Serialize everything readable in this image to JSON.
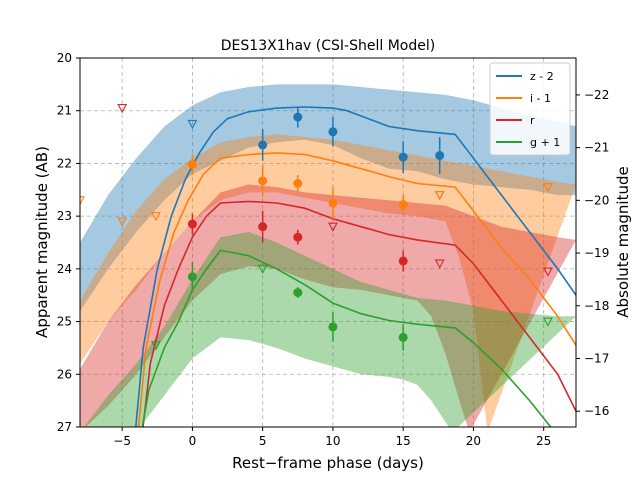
{
  "chart_data": {
    "type": "line",
    "title": "DES13X1hav (CSI-Shell Model)",
    "xlabel": "Rest−frame phase (days)",
    "ylabel": "Apparent magnitude (AB)",
    "ylabel_right": "Absolute magnitude",
    "xlim": [
      -8,
      27.3
    ],
    "ylim": [
      27,
      20
    ],
    "ylim_right": [
      -15.7,
      -22.7
    ],
    "x_ticks": [
      -5,
      0,
      5,
      10,
      15,
      20,
      25
    ],
    "y_ticks": [
      20,
      21,
      22,
      23,
      24,
      25,
      26,
      27
    ],
    "y_right_ticks": [
      -16,
      -17,
      -18,
      -19,
      -20,
      -21,
      -22
    ],
    "grid": true,
    "legend_position": "top-right",
    "series": [
      {
        "name": "z - 2",
        "color": "#1f77b4",
        "model": [
          [
            -4.1,
            27.2
          ],
          [
            -3.5,
            25.5
          ],
          [
            -2.5,
            24.0
          ],
          [
            -1.5,
            23.0
          ],
          [
            -0.5,
            22.3
          ],
          [
            0.5,
            21.8
          ],
          [
            1.5,
            21.4
          ],
          [
            2.5,
            21.15
          ],
          [
            4,
            21.02
          ],
          [
            6,
            20.95
          ],
          [
            8,
            20.93
          ],
          [
            10,
            20.95
          ],
          [
            11,
            21.0
          ],
          [
            12,
            21.1
          ],
          [
            13,
            21.2
          ],
          [
            14,
            21.3
          ],
          [
            16,
            21.38
          ],
          [
            18.7,
            21.45
          ],
          [
            20,
            21.9
          ],
          [
            22,
            22.6
          ],
          [
            24,
            23.3
          ],
          [
            26,
            24.0
          ],
          [
            27.3,
            24.5
          ]
        ],
        "band_upper": [
          [
            -8,
            23.5
          ],
          [
            -6,
            22.6
          ],
          [
            -4,
            21.9
          ],
          [
            -2,
            21.3
          ],
          [
            0,
            20.9
          ],
          [
            2,
            20.65
          ],
          [
            4,
            20.55
          ],
          [
            6,
            20.5
          ],
          [
            8,
            20.5
          ],
          [
            10,
            20.5
          ],
          [
            12,
            20.55
          ],
          [
            14,
            20.6
          ],
          [
            16,
            20.65
          ],
          [
            18,
            20.7
          ],
          [
            20,
            20.8
          ],
          [
            22,
            20.95
          ],
          [
            24,
            21.1
          ],
          [
            26,
            21.2
          ],
          [
            27.3,
            21.3
          ]
        ],
        "band_lower": [
          [
            -8,
            24.8
          ],
          [
            -6,
            24.0
          ],
          [
            -4,
            23.3
          ],
          [
            -2,
            22.7
          ],
          [
            0,
            22.2
          ],
          [
            2,
            21.95
          ],
          [
            4,
            21.7
          ],
          [
            6,
            21.6
          ],
          [
            8,
            21.55
          ],
          [
            10,
            21.65
          ],
          [
            12,
            21.9
          ],
          [
            14,
            22.1
          ],
          [
            16,
            22.15
          ],
          [
            18,
            22.3
          ],
          [
            20,
            22.4
          ],
          [
            22,
            22.45
          ],
          [
            24,
            22.5
          ],
          [
            26,
            22.6
          ],
          [
            27.3,
            22.6
          ]
        ],
        "points": [
          {
            "x": 5,
            "y": 21.65,
            "err": 0.3
          },
          {
            "x": 7.5,
            "y": 21.12,
            "err": 0.2
          },
          {
            "x": 10,
            "y": 21.4,
            "err": 0.28
          },
          {
            "x": 15,
            "y": 21.88,
            "err": 0.3
          },
          {
            "x": 17.6,
            "y": 21.85,
            "err": 0.35
          }
        ],
        "upper_limits": [
          {
            "x": 0,
            "y": 21.25
          },
          {
            "x": 17.6,
            "y": 22.6
          }
        ]
      },
      {
        "name": "i - 1",
        "color": "#ff7f0e",
        "model": [
          [
            -3.9,
            27.2
          ],
          [
            -3.3,
            25.5
          ],
          [
            -2.3,
            24.2
          ],
          [
            -1.3,
            23.3
          ],
          [
            -0.3,
            22.7
          ],
          [
            0.8,
            22.2
          ],
          [
            2,
            21.9
          ],
          [
            4,
            21.83
          ],
          [
            6,
            21.8
          ],
          [
            8,
            21.83
          ],
          [
            10,
            21.95
          ],
          [
            12,
            22.1
          ],
          [
            14,
            22.25
          ],
          [
            16,
            22.38
          ],
          [
            18.7,
            22.45
          ],
          [
            20,
            22.9
          ],
          [
            22,
            23.6
          ],
          [
            24,
            24.2
          ],
          [
            26,
            24.9
          ],
          [
            27.3,
            25.45
          ]
        ],
        "band_upper": [
          [
            -8,
            24.6
          ],
          [
            -6,
            23.7
          ],
          [
            -4,
            22.9
          ],
          [
            -2,
            22.3
          ],
          [
            0,
            21.9
          ],
          [
            2,
            21.6
          ],
          [
            4,
            21.5
          ],
          [
            6,
            21.45
          ],
          [
            8,
            21.5
          ],
          [
            10,
            21.55
          ],
          [
            12,
            21.65
          ],
          [
            14,
            21.75
          ],
          [
            16,
            21.85
          ],
          [
            18,
            21.95
          ],
          [
            20,
            22.05
          ],
          [
            22,
            22.15
          ],
          [
            24,
            22.25
          ],
          [
            26,
            22.35
          ],
          [
            27.3,
            22.4
          ]
        ],
        "band_lower": [
          [
            -8,
            25.8
          ],
          [
            -6,
            25.0
          ],
          [
            -4,
            24.4
          ],
          [
            -2,
            23.7
          ],
          [
            0,
            23.1
          ],
          [
            2,
            22.7
          ],
          [
            4,
            22.55
          ],
          [
            6,
            22.55
          ],
          [
            8,
            22.65
          ],
          [
            10,
            22.75
          ],
          [
            12,
            22.85
          ],
          [
            14,
            22.95
          ],
          [
            16,
            23.0
          ],
          [
            18,
            23.1
          ],
          [
            19,
            23.8
          ],
          [
            20,
            24.8
          ],
          [
            21,
            27.1
          ]
        ],
        "points": [
          {
            "x": 0,
            "y": 22.02,
            "err": 0.2
          },
          {
            "x": 5,
            "y": 22.33,
            "err": 0.3
          },
          {
            "x": 7.5,
            "y": 22.38,
            "err": 0.16
          },
          {
            "x": 10,
            "y": 22.75,
            "err": 0.3
          },
          {
            "x": 15,
            "y": 22.78,
            "err": 0.18
          }
        ],
        "upper_limits": [
          {
            "x": -8,
            "y": 22.7
          },
          {
            "x": -5,
            "y": 23.1
          },
          {
            "x": -2.6,
            "y": 23.0
          },
          {
            "x": 17.6,
            "y": 22.6
          },
          {
            "x": 25.3,
            "y": 22.45
          }
        ]
      },
      {
        "name": "r",
        "color": "#d62728",
        "model": [
          [
            -3.6,
            27.2
          ],
          [
            -3,
            25.8
          ],
          [
            -2,
            24.7
          ],
          [
            -1,
            24.0
          ],
          [
            0,
            23.4
          ],
          [
            1,
            23.0
          ],
          [
            2,
            22.75
          ],
          [
            4,
            22.72
          ],
          [
            6,
            22.75
          ],
          [
            8,
            22.85
          ],
          [
            10,
            23.05
          ],
          [
            12,
            23.2
          ],
          [
            14,
            23.35
          ],
          [
            16,
            23.45
          ],
          [
            18.7,
            23.55
          ],
          [
            20,
            23.9
          ],
          [
            22,
            24.6
          ],
          [
            24,
            25.3
          ],
          [
            26,
            26.0
          ],
          [
            27.3,
            26.7
          ]
        ],
        "band_upper": [
          [
            -8,
            25.9
          ],
          [
            -6,
            25.0
          ],
          [
            -4,
            24.3
          ],
          [
            -2,
            23.7
          ],
          [
            0,
            23.1
          ],
          [
            2,
            22.55
          ],
          [
            4,
            22.4
          ],
          [
            6,
            22.45
          ],
          [
            8,
            22.55
          ],
          [
            10,
            22.6
          ],
          [
            12,
            22.65
          ],
          [
            14,
            22.7
          ],
          [
            16,
            22.75
          ],
          [
            18,
            22.8
          ],
          [
            20,
            23.0
          ],
          [
            22,
            23.2
          ],
          [
            24,
            23.3
          ],
          [
            26,
            23.4
          ],
          [
            27.3,
            23.45
          ]
        ],
        "band_lower": [
          [
            -8,
            27.1
          ],
          [
            -6,
            26.6
          ],
          [
            -4,
            26.0
          ],
          [
            -2,
            25.3
          ],
          [
            0,
            24.6
          ],
          [
            2,
            24.1
          ],
          [
            4,
            23.95
          ],
          [
            6,
            24.0
          ],
          [
            8,
            24.2
          ],
          [
            10,
            24.35
          ],
          [
            12,
            24.4
          ],
          [
            14,
            24.5
          ],
          [
            16,
            24.6
          ],
          [
            17,
            24.9
          ],
          [
            18,
            25.6
          ],
          [
            19,
            26.5
          ],
          [
            19.7,
            27.1
          ]
        ],
        "points": [
          {
            "x": 0,
            "y": 23.15,
            "err": 0.2
          },
          {
            "x": 5,
            "y": 23.2,
            "err": 0.3
          },
          {
            "x": 7.5,
            "y": 23.4,
            "err": 0.14
          },
          {
            "x": 15,
            "y": 23.85,
            "err": 0.2
          }
        ],
        "upper_limits": [
          {
            "x": -5,
            "y": 20.95
          },
          {
            "x": 10,
            "y": 23.2
          },
          {
            "x": 17.6,
            "y": 23.9
          },
          {
            "x": 25.3,
            "y": 24.05
          }
        ]
      },
      {
        "name": "g + 1",
        "color": "#2ca02c",
        "model": [
          [
            -3.7,
            27.2
          ],
          [
            -3.1,
            26.3
          ],
          [
            -2,
            25.5
          ],
          [
            -1,
            25.0
          ],
          [
            0,
            24.4
          ],
          [
            1,
            24.0
          ],
          [
            2,
            23.65
          ],
          [
            3,
            23.7
          ],
          [
            4,
            23.75
          ],
          [
            6,
            24.0
          ],
          [
            8,
            24.3
          ],
          [
            10,
            24.65
          ],
          [
            12,
            24.85
          ],
          [
            14,
            24.98
          ],
          [
            16,
            25.05
          ],
          [
            18.7,
            25.12
          ],
          [
            20,
            25.4
          ],
          [
            22,
            25.9
          ],
          [
            24,
            26.5
          ],
          [
            25.5,
            27.0
          ],
          [
            26,
            27.2
          ]
        ],
        "band_upper": [
          [
            -8,
            27.1
          ],
          [
            -6,
            26.4
          ],
          [
            -4,
            25.8
          ],
          [
            -2,
            25.1
          ],
          [
            0,
            24.2
          ],
          [
            2,
            23.4
          ],
          [
            4,
            23.3
          ],
          [
            6,
            23.5
          ],
          [
            8,
            23.75
          ],
          [
            10,
            24.0
          ],
          [
            12,
            24.25
          ],
          [
            14,
            24.4
          ],
          [
            16,
            24.55
          ],
          [
            18,
            24.6
          ],
          [
            20,
            24.7
          ],
          [
            22,
            24.8
          ],
          [
            24,
            24.85
          ],
          [
            26,
            24.9
          ],
          [
            27.3,
            24.9
          ]
        ],
        "band_lower": [
          [
            -8,
            27.1
          ],
          [
            -4,
            27.1
          ],
          [
            -2,
            26.4
          ],
          [
            0,
            25.7
          ],
          [
            2,
            25.3
          ],
          [
            4,
            25.35
          ],
          [
            6,
            25.5
          ],
          [
            8,
            25.7
          ],
          [
            10,
            25.85
          ],
          [
            12,
            26.0
          ],
          [
            14,
            26.05
          ],
          [
            15,
            26.1
          ],
          [
            16,
            26.2
          ],
          [
            17,
            26.5
          ],
          [
            18,
            26.9
          ],
          [
            18.5,
            27.1
          ]
        ],
        "points": [
          {
            "x": 0,
            "y": 24.15,
            "err": 0.28
          },
          {
            "x": 7.5,
            "y": 24.45,
            "err": 0.1
          },
          {
            "x": 10,
            "y": 25.1,
            "err": 0.28
          },
          {
            "x": 15,
            "y": 25.3,
            "err": 0.25
          }
        ],
        "upper_limits": [
          {
            "x": -2.6,
            "y": 25.45
          },
          {
            "x": 5,
            "y": 24.0
          },
          {
            "x": 25.3,
            "y": 25.0
          }
        ]
      }
    ]
  }
}
